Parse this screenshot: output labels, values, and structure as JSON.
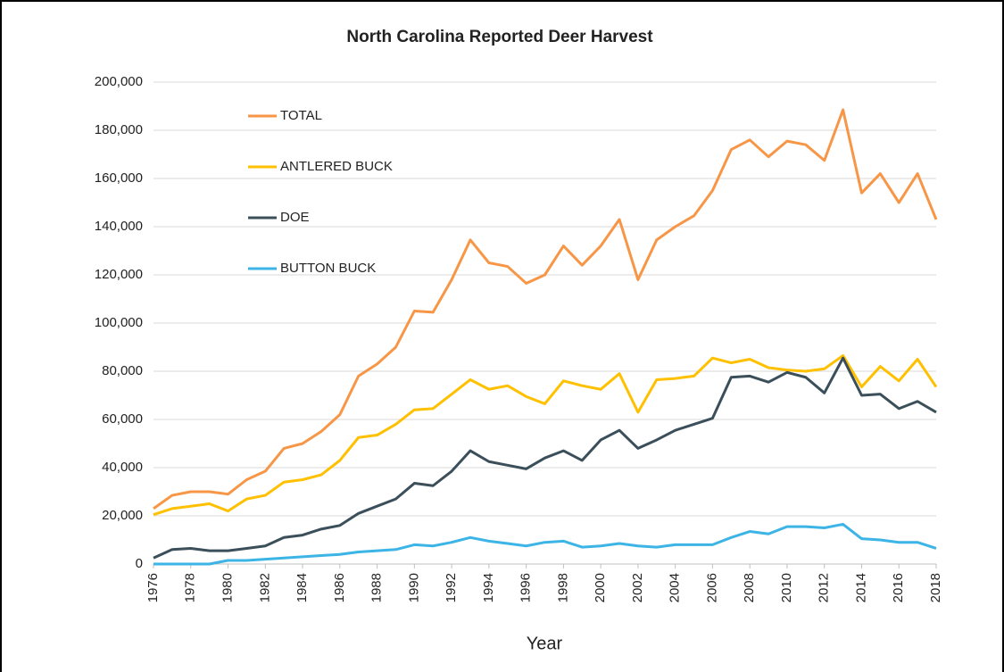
{
  "chart_data": {
    "type": "line",
    "title": "North Carolina Reported Deer Harvest",
    "x_label": "Year",
    "x": [
      1976,
      1977,
      1978,
      1979,
      1980,
      1981,
      1982,
      1983,
      1984,
      1985,
      1986,
      1987,
      1988,
      1989,
      1990,
      1991,
      1992,
      1993,
      1994,
      1995,
      1996,
      1997,
      1998,
      1999,
      2000,
      2001,
      2002,
      2003,
      2004,
      2005,
      2006,
      2007,
      2008,
      2009,
      2010,
      2011,
      2012,
      2013,
      2014,
      2015,
      2016,
      2017,
      2018
    ],
    "xlim": [
      1976,
      2018
    ],
    "xticks": [
      1976,
      1978,
      1980,
      1982,
      1984,
      1986,
      1988,
      1990,
      1992,
      1994,
      1996,
      1998,
      2000,
      2002,
      2004,
      2006,
      2008,
      2010,
      2012,
      2014,
      2016,
      2018
    ],
    "ylim": [
      0,
      200000
    ],
    "yticks": [
      0,
      {
        "value": 20000,
        "label": "20,000"
      },
      {
        "value": 40000,
        "label": "40,000"
      },
      {
        "value": 60000,
        "label": "60,000"
      },
      {
        "value": 80000,
        "label": "80,000"
      },
      {
        "value": 100000,
        "label": "100,000"
      },
      {
        "value": 120000,
        "label": "120,000"
      },
      {
        "value": 140000,
        "label": "140,000"
      },
      {
        "value": 160000,
        "label": "160,000"
      },
      {
        "value": 180000,
        "label": "180,000"
      },
      {
        "value": 200000,
        "label": "200,000"
      }
    ],
    "grid": true,
    "legend": "upper-left",
    "series": [
      {
        "name": "TOTAL",
        "color": "#f79646",
        "values": [
          23000,
          28500,
          30000,
          30000,
          29000,
          35000,
          38500,
          48000,
          50000,
          55000,
          62000,
          78000,
          83000,
          90000,
          105000,
          104500,
          118000,
          134500,
          125000,
          123500,
          116500,
          120000,
          132000,
          124000,
          132000,
          143000,
          118000,
          134500,
          140000,
          144500,
          155000,
          172000,
          176000,
          169000,
          175500,
          174000,
          167500,
          188500,
          154000,
          162000,
          150000,
          162000,
          143000
        ]
      },
      {
        "name": "ANTLERED BUCK",
        "color": "#ffc000",
        "values": [
          20500,
          23000,
          24000,
          25000,
          22000,
          27000,
          28500,
          34000,
          35000,
          37000,
          43000,
          52500,
          53500,
          58000,
          64000,
          64500,
          70500,
          76500,
          72500,
          74000,
          69500,
          66500,
          76000,
          74000,
          72500,
          79000,
          63000,
          76500,
          77000,
          78000,
          85500,
          83500,
          85000,
          81500,
          80500,
          80000,
          81000,
          86500,
          73500,
          82000,
          76000,
          85000,
          73500
        ]
      },
      {
        "name": "DOE",
        "color": "#3b4f5a",
        "values": [
          2500,
          6000,
          6500,
          5500,
          5500,
          6500,
          7500,
          11000,
          12000,
          14500,
          16000,
          21000,
          24000,
          27000,
          33500,
          32500,
          38500,
          47000,
          42500,
          41000,
          39500,
          44000,
          47000,
          43000,
          51500,
          55500,
          48000,
          51500,
          55500,
          58000,
          60500,
          77500,
          78000,
          75500,
          79500,
          77500,
          71000,
          85500,
          70000,
          70500,
          64500,
          67500,
          63000
        ]
      },
      {
        "name": "BUTTON BUCK",
        "color": "#3cb4e5",
        "values": [
          0,
          0,
          0,
          0,
          1500,
          1500,
          2000,
          2500,
          3000,
          3500,
          4000,
          5000,
          5500,
          6000,
          8000,
          7500,
          9000,
          11000,
          9500,
          8500,
          7500,
          9000,
          9500,
          7000,
          7500,
          8500,
          7500,
          7000,
          8000,
          8000,
          8000,
          11000,
          13500,
          12500,
          15500,
          15500,
          15000,
          16500,
          10500,
          10000,
          9000,
          9000,
          6500
        ]
      }
    ]
  }
}
